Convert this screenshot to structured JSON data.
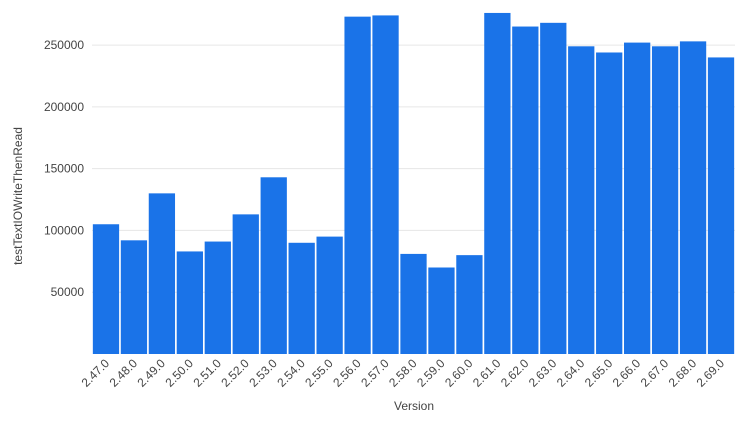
{
  "chart_data": {
    "type": "bar",
    "x_label": "Version",
    "y_label": "testTextIOWriteThenRead",
    "categories": [
      "2.47.0",
      "2.48.0",
      "2.49.0",
      "2.50.0",
      "2.51.0",
      "2.52.0",
      "2.53.0",
      "2.54.0",
      "2.55.0",
      "2.56.0",
      "2.57.0",
      "2.58.0",
      "2.59.0",
      "2.60.0",
      "2.61.0",
      "2.62.0",
      "2.63.0",
      "2.64.0",
      "2.65.0",
      "2.66.0",
      "2.67.0",
      "2.68.0",
      "2.69.0"
    ],
    "values": [
      105000,
      92000,
      130000,
      83000,
      91000,
      113000,
      143000,
      90000,
      95000,
      273000,
      274000,
      81000,
      70000,
      80000,
      276000,
      265000,
      268000,
      249000,
      244000,
      252000,
      249000,
      253000,
      240000
    ],
    "color": "#1a73e8",
    "ylim": [
      0,
      280000
    ],
    "yticks": [
      50000,
      100000,
      150000,
      200000,
      250000
    ],
    "grid": true
  }
}
